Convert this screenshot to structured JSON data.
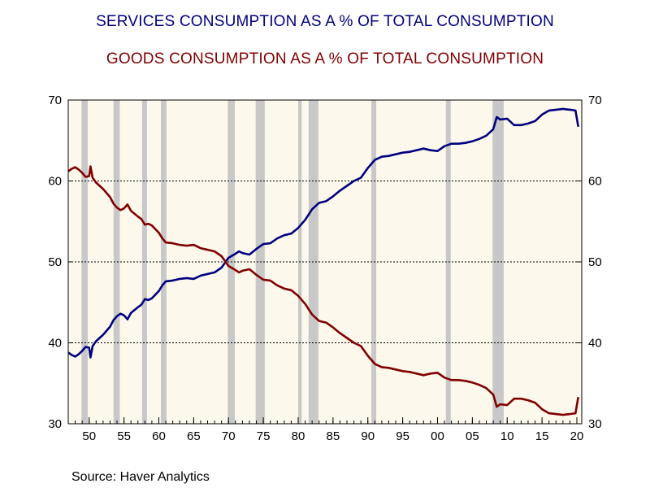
{
  "colors": {
    "services": "#000080",
    "goods": "#800000",
    "plot_background": "#fdf8ec",
    "recession_band": "#c8c8c8",
    "grid": "#000000"
  },
  "source_text": "Source:  Haver Analytics",
  "chart_data": {
    "type": "line",
    "title": "SERVICES CONSUMPTION AS A % OF TOTAL CONSUMPTION",
    "subtitle": "GOODS CONSUMPTION AS A % OF TOTAL CONSUMPTION",
    "xlabel": "",
    "ylabel": "",
    "xlim": [
      1947,
      2020.7
    ],
    "ylim": [
      30,
      70
    ],
    "y_ticks": [
      30,
      40,
      50,
      60,
      70
    ],
    "x_ticks": [
      {
        "year": 1950,
        "label": "50"
      },
      {
        "year": 1955,
        "label": "55"
      },
      {
        "year": 1960,
        "label": "60"
      },
      {
        "year": 1965,
        "label": "65"
      },
      {
        "year": 1970,
        "label": "70"
      },
      {
        "year": 1975,
        "label": "75"
      },
      {
        "year": 1980,
        "label": "80"
      },
      {
        "year": 1985,
        "label": "85"
      },
      {
        "year": 1990,
        "label": "90"
      },
      {
        "year": 1995,
        "label": "95"
      },
      {
        "year": 2000,
        "label": "00"
      },
      {
        "year": 2005,
        "label": "05"
      },
      {
        "year": 2010,
        "label": "10"
      },
      {
        "year": 2015,
        "label": "15"
      },
      {
        "year": 2020,
        "label": "20"
      }
    ],
    "dual_y_axis": true,
    "grid": "horizontal dotted",
    "legend": "none",
    "recessions": [
      [
        1948.9,
        1949.8
      ],
      [
        1953.5,
        1954.4
      ],
      [
        1957.6,
        1958.3
      ],
      [
        1960.3,
        1961.1
      ],
      [
        1969.9,
        1970.9
      ],
      [
        1973.9,
        1975.2
      ],
      [
        1980.0,
        1980.5
      ],
      [
        1981.5,
        1982.9
      ],
      [
        1990.5,
        1991.2
      ],
      [
        2001.2,
        2001.9
      ],
      [
        2007.9,
        2009.5
      ]
    ],
    "series": [
      {
        "color": "#000080",
        "points": [
          [
            1947.0,
            38.8
          ],
          [
            1947.5,
            38.5
          ],
          [
            1948.0,
            38.3
          ],
          [
            1948.5,
            38.6
          ],
          [
            1949.0,
            39.0
          ],
          [
            1949.5,
            39.5
          ],
          [
            1950.0,
            39.4
          ],
          [
            1950.2,
            38.2
          ],
          [
            1950.5,
            39.6
          ],
          [
            1951.0,
            40.2
          ],
          [
            1951.5,
            40.6
          ],
          [
            1952.0,
            41.0
          ],
          [
            1952.5,
            41.5
          ],
          [
            1953.0,
            42.0
          ],
          [
            1953.5,
            42.8
          ],
          [
            1954.0,
            43.3
          ],
          [
            1954.5,
            43.6
          ],
          [
            1955.0,
            43.4
          ],
          [
            1955.5,
            42.9
          ],
          [
            1956.0,
            43.7
          ],
          [
            1957.0,
            44.4
          ],
          [
            1957.5,
            44.7
          ],
          [
            1958.0,
            45.4
          ],
          [
            1958.5,
            45.3
          ],
          [
            1959.0,
            45.5
          ],
          [
            1960.0,
            46.4
          ],
          [
            1960.5,
            47.1
          ],
          [
            1961.0,
            47.6
          ],
          [
            1962.0,
            47.7
          ],
          [
            1963.0,
            47.9
          ],
          [
            1964.0,
            48.0
          ],
          [
            1965.0,
            47.9
          ],
          [
            1966.0,
            48.3
          ],
          [
            1967.0,
            48.5
          ],
          [
            1968.0,
            48.7
          ],
          [
            1969.0,
            49.3
          ],
          [
            1970.0,
            50.5
          ],
          [
            1971.0,
            51.0
          ],
          [
            1971.5,
            51.3
          ],
          [
            1972.0,
            51.1
          ],
          [
            1973.0,
            50.9
          ],
          [
            1974.0,
            51.6
          ],
          [
            1975.0,
            52.2
          ],
          [
            1976.0,
            52.3
          ],
          [
            1977.0,
            52.9
          ],
          [
            1978.0,
            53.3
          ],
          [
            1979.0,
            53.5
          ],
          [
            1980.0,
            54.2
          ],
          [
            1981.0,
            55.2
          ],
          [
            1982.0,
            56.5
          ],
          [
            1983.0,
            57.3
          ],
          [
            1984.0,
            57.5
          ],
          [
            1985.0,
            58.1
          ],
          [
            1986.0,
            58.8
          ],
          [
            1987.0,
            59.4
          ],
          [
            1988.0,
            60.0
          ],
          [
            1989.0,
            60.4
          ],
          [
            1990.0,
            61.6
          ],
          [
            1991.0,
            62.6
          ],
          [
            1992.0,
            63.0
          ],
          [
            1993.0,
            63.1
          ],
          [
            1994.0,
            63.3
          ],
          [
            1995.0,
            63.5
          ],
          [
            1996.0,
            63.6
          ],
          [
            1997.0,
            63.8
          ],
          [
            1998.0,
            64.0
          ],
          [
            1999.0,
            63.8
          ],
          [
            2000.0,
            63.7
          ],
          [
            2001.0,
            64.3
          ],
          [
            2002.0,
            64.6
          ],
          [
            2003.0,
            64.6
          ],
          [
            2004.0,
            64.7
          ],
          [
            2005.0,
            64.9
          ],
          [
            2006.0,
            65.2
          ],
          [
            2007.0,
            65.6
          ],
          [
            2008.0,
            66.4
          ],
          [
            2008.5,
            67.9
          ],
          [
            2009.0,
            67.6
          ],
          [
            2010.0,
            67.7
          ],
          [
            2011.0,
            66.9
          ],
          [
            2012.0,
            66.9
          ],
          [
            2013.0,
            67.1
          ],
          [
            2014.0,
            67.4
          ],
          [
            2015.0,
            68.2
          ],
          [
            2016.0,
            68.7
          ],
          [
            2017.0,
            68.8
          ],
          [
            2018.0,
            68.9
          ],
          [
            2019.0,
            68.8
          ],
          [
            2019.8,
            68.7
          ],
          [
            2020.2,
            66.7
          ]
        ]
      },
      {
        "color": "#800000",
        "points": [
          [
            1947.0,
            61.2
          ],
          [
            1947.5,
            61.5
          ],
          [
            1948.0,
            61.7
          ],
          [
            1948.5,
            61.4
          ],
          [
            1949.0,
            61.0
          ],
          [
            1949.5,
            60.5
          ],
          [
            1950.0,
            60.6
          ],
          [
            1950.2,
            61.8
          ],
          [
            1950.5,
            60.4
          ],
          [
            1951.0,
            59.8
          ],
          [
            1951.5,
            59.4
          ],
          [
            1952.0,
            59.0
          ],
          [
            1952.5,
            58.5
          ],
          [
            1953.0,
            58.0
          ],
          [
            1953.5,
            57.2
          ],
          [
            1954.0,
            56.7
          ],
          [
            1954.5,
            56.4
          ],
          [
            1955.0,
            56.6
          ],
          [
            1955.5,
            57.1
          ],
          [
            1956.0,
            56.3
          ],
          [
            1957.0,
            55.6
          ],
          [
            1957.5,
            55.3
          ],
          [
            1958.0,
            54.6
          ],
          [
            1958.5,
            54.7
          ],
          [
            1959.0,
            54.5
          ],
          [
            1960.0,
            53.6
          ],
          [
            1960.5,
            52.9
          ],
          [
            1961.0,
            52.4
          ],
          [
            1962.0,
            52.3
          ],
          [
            1963.0,
            52.1
          ],
          [
            1964.0,
            52.0
          ],
          [
            1965.0,
            52.1
          ],
          [
            1966.0,
            51.7
          ],
          [
            1967.0,
            51.5
          ],
          [
            1968.0,
            51.3
          ],
          [
            1969.0,
            50.7
          ],
          [
            1970.0,
            49.5
          ],
          [
            1971.0,
            49.0
          ],
          [
            1971.5,
            48.7
          ],
          [
            1972.0,
            48.9
          ],
          [
            1973.0,
            49.1
          ],
          [
            1974.0,
            48.4
          ],
          [
            1975.0,
            47.8
          ],
          [
            1976.0,
            47.7
          ],
          [
            1977.0,
            47.1
          ],
          [
            1978.0,
            46.7
          ],
          [
            1979.0,
            46.5
          ],
          [
            1980.0,
            45.8
          ],
          [
            1981.0,
            44.8
          ],
          [
            1982.0,
            43.5
          ],
          [
            1983.0,
            42.7
          ],
          [
            1984.0,
            42.5
          ],
          [
            1985.0,
            41.9
          ],
          [
            1986.0,
            41.2
          ],
          [
            1987.0,
            40.6
          ],
          [
            1988.0,
            40.0
          ],
          [
            1989.0,
            39.6
          ],
          [
            1990.0,
            38.4
          ],
          [
            1991.0,
            37.4
          ],
          [
            1992.0,
            37.0
          ],
          [
            1993.0,
            36.9
          ],
          [
            1994.0,
            36.7
          ],
          [
            1995.0,
            36.5
          ],
          [
            1996.0,
            36.4
          ],
          [
            1997.0,
            36.2
          ],
          [
            1998.0,
            36.0
          ],
          [
            1999.0,
            36.2
          ],
          [
            2000.0,
            36.3
          ],
          [
            2001.0,
            35.7
          ],
          [
            2002.0,
            35.4
          ],
          [
            2003.0,
            35.4
          ],
          [
            2004.0,
            35.3
          ],
          [
            2005.0,
            35.1
          ],
          [
            2006.0,
            34.8
          ],
          [
            2007.0,
            34.4
          ],
          [
            2008.0,
            33.6
          ],
          [
            2008.5,
            32.1
          ],
          [
            2009.0,
            32.4
          ],
          [
            2010.0,
            32.3
          ],
          [
            2011.0,
            33.1
          ],
          [
            2012.0,
            33.1
          ],
          [
            2013.0,
            32.9
          ],
          [
            2014.0,
            32.6
          ],
          [
            2015.0,
            31.8
          ],
          [
            2016.0,
            31.3
          ],
          [
            2017.0,
            31.2
          ],
          [
            2018.0,
            31.1
          ],
          [
            2019.0,
            31.2
          ],
          [
            2019.8,
            31.3
          ],
          [
            2020.2,
            33.3
          ]
        ]
      }
    ]
  }
}
